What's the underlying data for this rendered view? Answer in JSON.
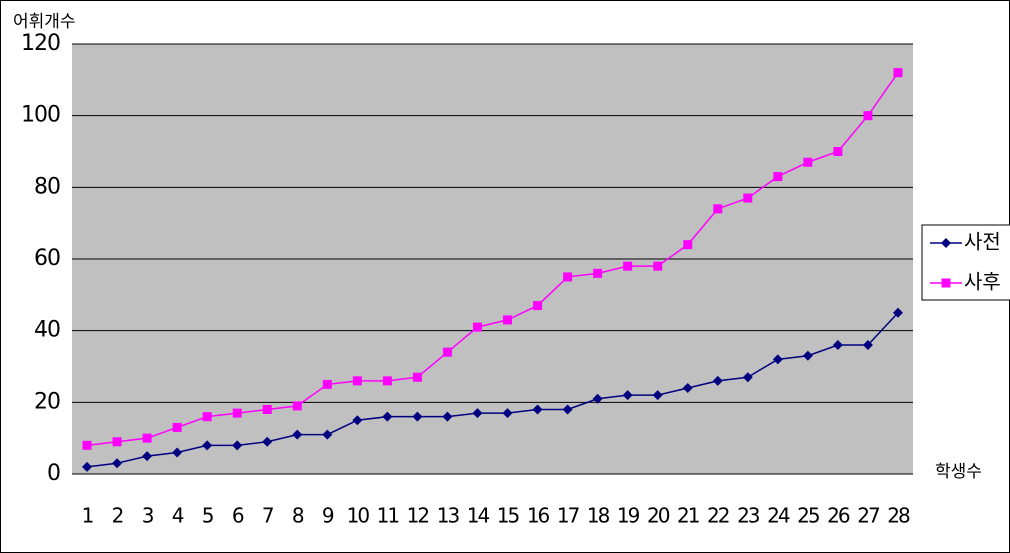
{
  "chart_data": {
    "type": "line",
    "y_label": "어휘개수",
    "x_label": "학생수",
    "categories": [
      "1",
      "2",
      "3",
      "4",
      "5",
      "6",
      "7",
      "8",
      "9",
      "10",
      "11",
      "12",
      "13",
      "14",
      "15",
      "16",
      "17",
      "18",
      "19",
      "20",
      "21",
      "22",
      "23",
      "24",
      "25",
      "26",
      "27",
      "28"
    ],
    "series": [
      {
        "name": "사전",
        "color": "#000080",
        "marker": "diamond",
        "values": [
          2,
          3,
          5,
          6,
          8,
          8,
          9,
          11,
          11,
          15,
          16,
          16,
          16,
          17,
          17,
          18,
          18,
          21,
          22,
          22,
          24,
          26,
          27,
          32,
          33,
          36,
          36,
          45
        ]
      },
      {
        "name": "사후",
        "color": "#ff00ff",
        "marker": "square",
        "values": [
          8,
          9,
          10,
          13,
          16,
          17,
          18,
          19,
          25,
          26,
          26,
          27,
          34,
          41,
          43,
          47,
          55,
          56,
          58,
          58,
          64,
          74,
          77,
          83,
          87,
          90,
          100,
          112
        ]
      }
    ],
    "ylim": [
      0,
      120
    ],
    "yticks": [
      0,
      20,
      40,
      60,
      80,
      100,
      120
    ],
    "grid": true,
    "legend": "right"
  }
}
